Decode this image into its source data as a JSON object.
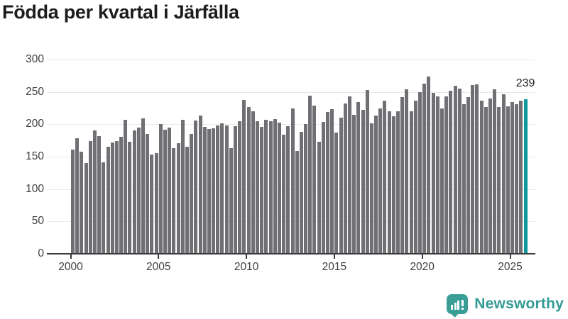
{
  "title": "Födda per kvartal i Järfälla",
  "logo": {
    "text": "Newsworthy",
    "color": "#339b94"
  },
  "colors": {
    "bar": "#6f6f74",
    "highlight": "#0d9a9c",
    "gridline": "#e9e9e9",
    "axis_line": "#3a3a3a",
    "axis_text": "#3f3f3f",
    "title_text": "#1c1c1c"
  },
  "chart_data": {
    "type": "bar",
    "title": "Födda per kvartal i Järfälla",
    "frequency": "quarterly",
    "start_quarter": "2000 Q1",
    "end_quarter": "2025 Q4",
    "ylim": [
      0,
      300
    ],
    "y_ticks": [
      0,
      50,
      100,
      150,
      200,
      250,
      300
    ],
    "x_tick_years": [
      2000,
      2005,
      2010,
      2015,
      2020,
      2025
    ],
    "x_tick_labels": [
      "2000",
      "2005",
      "2010",
      "2015",
      "2020",
      "2025"
    ],
    "grid": true,
    "legend": false,
    "last_label": "239",
    "highlight": {
      "index": 103,
      "quarter": "2025 Q4",
      "value": 239
    },
    "values": [
      161,
      179,
      158,
      140,
      174,
      190,
      182,
      141,
      165,
      172,
      174,
      181,
      207,
      173,
      191,
      195,
      209,
      185,
      153,
      156,
      200,
      192,
      195,
      163,
      171,
      207,
      165,
      185,
      206,
      214,
      196,
      193,
      194,
      198,
      202,
      198,
      163,
      197,
      205,
      238,
      227,
      220,
      205,
      196,
      207,
      205,
      208,
      203,
      184,
      197,
      224,
      159,
      188,
      200,
      244,
      229,
      173,
      204,
      219,
      223,
      187,
      210,
      232,
      243,
      215,
      234,
      222,
      253,
      202,
      214,
      225,
      236,
      220,
      212,
      220,
      242,
      254,
      220,
      237,
      250,
      263,
      274,
      248,
      243,
      225,
      243,
      252,
      260,
      255,
      231,
      242,
      261,
      262,
      236,
      227,
      240,
      254,
      227,
      246,
      228,
      234,
      231,
      237,
      239
    ]
  }
}
